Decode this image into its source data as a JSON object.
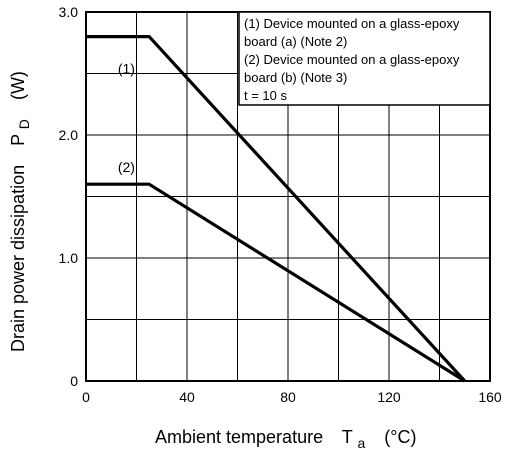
{
  "chart_data": {
    "type": "line",
    "title": "",
    "xlabel": "Ambient temperature",
    "xlabel_symbol": "T",
    "xlabel_subscript": "a",
    "xlabel_unit": "(°C)",
    "ylabel": "Drain power dissipation",
    "ylabel_symbol": "P",
    "ylabel_subscript": "D",
    "ylabel_unit": "(W)",
    "xlim": [
      0,
      160
    ],
    "ylim": [
      0,
      3.0
    ],
    "x_ticks": [
      0,
      40,
      80,
      120,
      160
    ],
    "x_tick_labels": [
      "0",
      "40",
      "80",
      "120",
      "160"
    ],
    "y_ticks": [
      0,
      1.0,
      2.0,
      3.0
    ],
    "y_tick_labels": [
      "0",
      "1.0",
      "2.0",
      "3.0"
    ],
    "x_grid": [
      20,
      40,
      60,
      80,
      100,
      120,
      140
    ],
    "y_grid": [
      0.5,
      1.0,
      1.5,
      2.0,
      2.5
    ],
    "grid": true,
    "series": [
      {
        "name": "(1)",
        "x": [
          0,
          25,
          150
        ],
        "y": [
          2.8,
          2.8,
          0
        ]
      },
      {
        "name": "(2)",
        "x": [
          0,
          25,
          150
        ],
        "y": [
          1.6,
          1.6,
          0
        ]
      }
    ],
    "series_label_positions": [
      {
        "x": 16,
        "y": 2.5
      },
      {
        "x": 16,
        "y": 1.7
      }
    ],
    "legend": {
      "placement": "top-right",
      "lines": [
        "(1) Device mounted on a glass-epoxy",
        "board (a) (Note 2)",
        "(2) Device mounted on a glass-epoxy",
        "board (b) (Note 3)",
        "t = 10 s"
      ]
    }
  }
}
